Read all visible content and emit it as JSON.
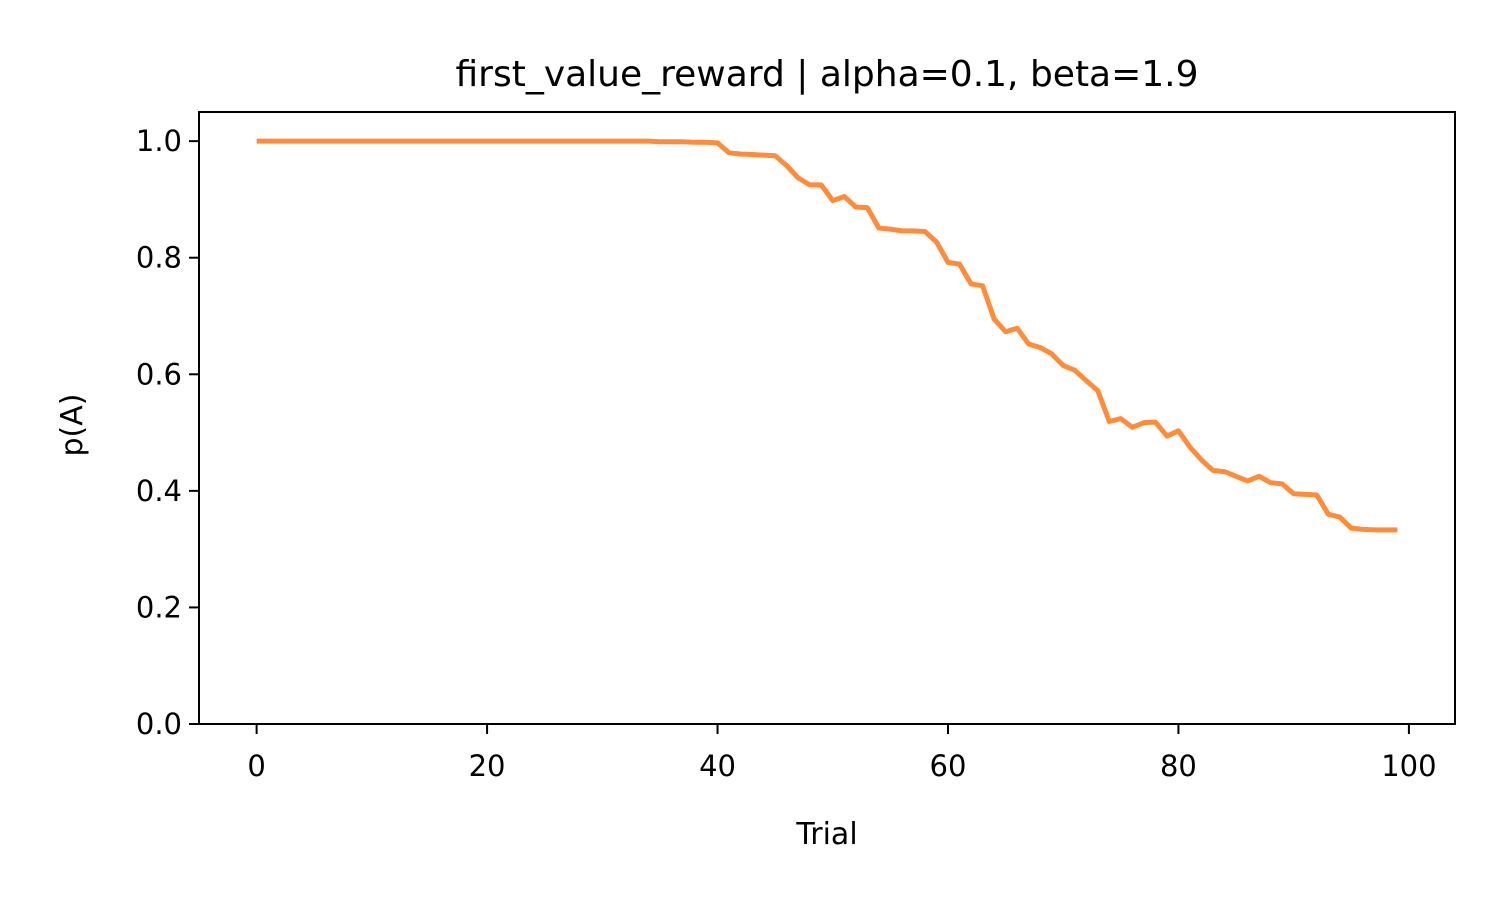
{
  "chart_data": {
    "type": "line",
    "title": "first_value_reward | alpha=0.1, beta=1.9",
    "xlabel": "Trial",
    "ylabel": "p(A)",
    "xlim": [
      -5,
      104
    ],
    "ylim": [
      0.0,
      1.05
    ],
    "xticks": [
      0,
      20,
      40,
      60,
      80,
      100
    ],
    "xtick_labels": [
      "0",
      "20",
      "40",
      "60",
      "80",
      "100"
    ],
    "yticks": [
      0.0,
      0.2,
      0.4,
      0.6,
      0.8,
      1.0
    ],
    "ytick_labels": [
      "0.0",
      "0.2",
      "0.4",
      "0.6",
      "0.8",
      "1.0"
    ],
    "grid": false,
    "series": [
      {
        "color": "#ff8c3a",
        "x": [
          0,
          1,
          2,
          3,
          4,
          5,
          6,
          7,
          8,
          9,
          10,
          11,
          12,
          13,
          14,
          15,
          16,
          17,
          18,
          19,
          20,
          21,
          22,
          23,
          24,
          25,
          26,
          27,
          28,
          29,
          30,
          31,
          32,
          33,
          34,
          35,
          36,
          37,
          38,
          39,
          40,
          41,
          42,
          43,
          44,
          45,
          46,
          47,
          48,
          49,
          50,
          51,
          52,
          53,
          54,
          55,
          56,
          57,
          58,
          59,
          60,
          61,
          62,
          63,
          64,
          65,
          66,
          67,
          68,
          69,
          70,
          71,
          72,
          73,
          74,
          75,
          76,
          77,
          78,
          79,
          80,
          81,
          82,
          83,
          84,
          85,
          86,
          87,
          88,
          89,
          90,
          91,
          92,
          93,
          94,
          95,
          96,
          97,
          98,
          99
        ],
        "y": [
          1.0,
          1.0,
          1.0,
          1.0,
          1.0,
          1.0,
          1.0,
          1.0,
          1.0,
          1.0,
          1.0,
          1.0,
          1.0,
          1.0,
          1.0,
          1.0,
          1.0,
          1.0,
          1.0,
          1.0,
          1.0,
          1.0,
          1.0,
          1.0,
          1.0,
          1.0,
          1.0,
          1.0,
          1.0,
          1.0,
          1.0,
          1.0,
          1.0,
          1.0,
          1.0,
          0.999,
          0.999,
          0.999,
          0.998,
          0.998,
          0.997,
          0.98,
          0.978,
          0.977,
          0.976,
          0.975,
          0.958,
          0.937,
          0.925,
          0.925,
          0.898,
          0.905,
          0.887,
          0.886,
          0.851,
          0.849,
          0.846,
          0.846,
          0.845,
          0.827,
          0.792,
          0.789,
          0.755,
          0.752,
          0.695,
          0.673,
          0.679,
          0.652,
          0.646,
          0.635,
          0.615,
          0.607,
          0.589,
          0.572,
          0.519,
          0.524,
          0.509,
          0.517,
          0.518,
          0.494,
          0.503,
          0.475,
          0.453,
          0.435,
          0.433,
          0.425,
          0.417,
          0.425,
          0.414,
          0.412,
          0.395,
          0.394,
          0.393,
          0.36,
          0.355,
          0.336,
          0.334,
          0.333,
          0.333,
          0.333
        ]
      }
    ]
  }
}
